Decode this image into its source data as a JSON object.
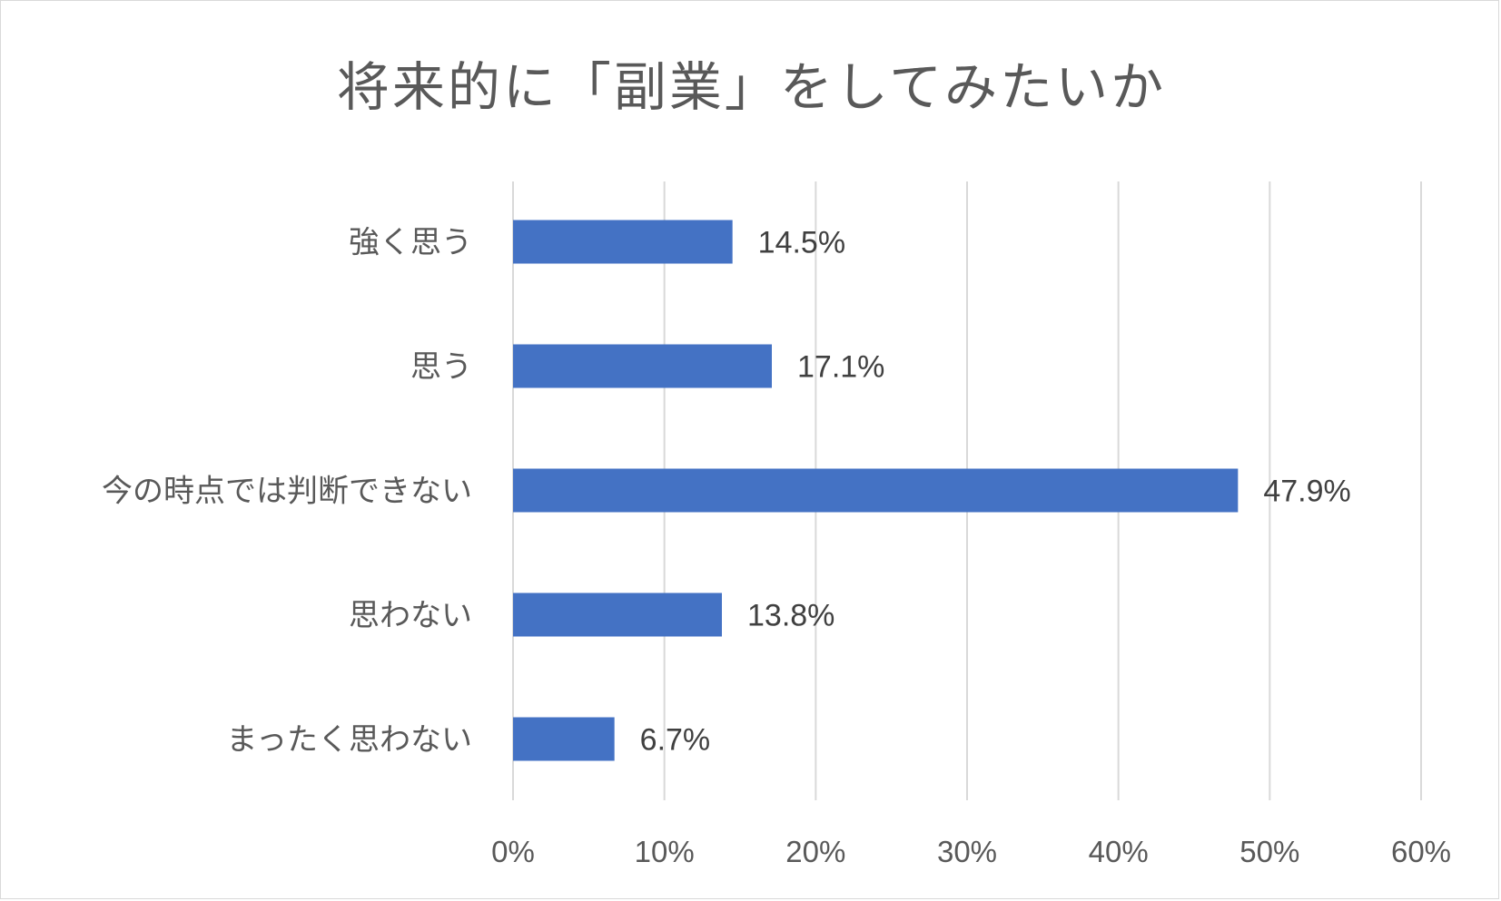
{
  "chart_data": {
    "type": "bar",
    "orientation": "horizontal",
    "title": "将来的に「副業」をしてみたいか",
    "categories": [
      "強く思う",
      "思う",
      "今の時点では判断できない",
      "思わない",
      "まったく思わない"
    ],
    "values": [
      14.5,
      17.1,
      47.9,
      13.8,
      6.7
    ],
    "data_labels": [
      "14.5%",
      "17.1%",
      "47.9%",
      "13.8%",
      "6.7%"
    ],
    "xlim": [
      0,
      60
    ],
    "x_ticks": [
      "0%",
      "10%",
      "20%",
      "30%",
      "40%",
      "50%",
      "60%"
    ],
    "grid": "vertical",
    "legend": "none",
    "bar_color": "#4472C4"
  }
}
